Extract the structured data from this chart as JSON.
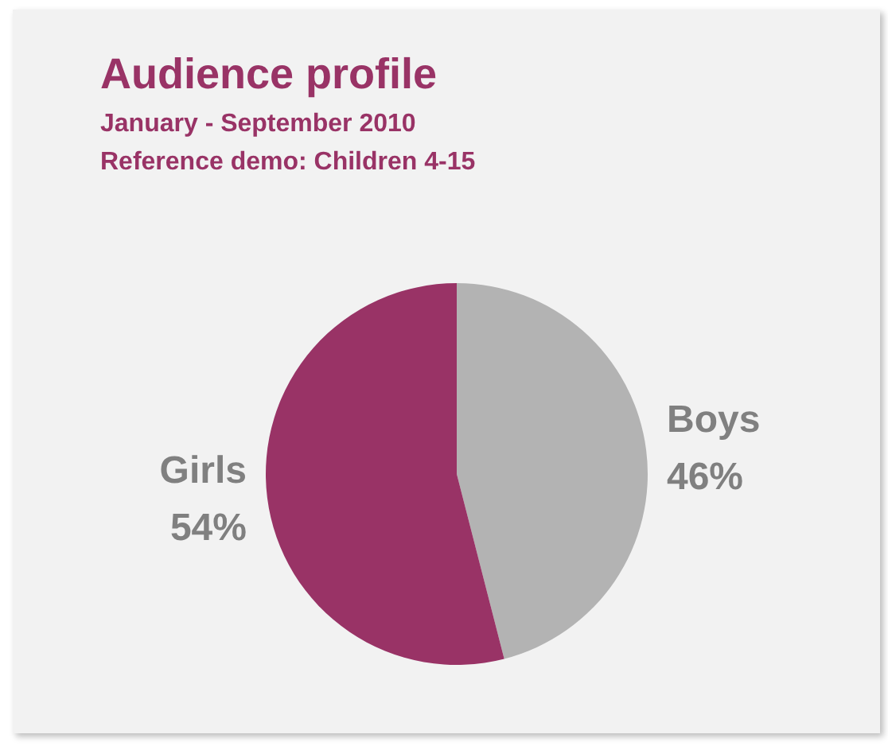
{
  "chart_data": {
    "type": "pie",
    "title": "Audience profile",
    "subtitle": "January - September 2010\nReference demo: Children 4-15",
    "categories": [
      "Boys",
      "Girls"
    ],
    "values": [
      46,
      54
    ],
    "colors": [
      "#b3b3b3",
      "#993366"
    ],
    "value_labels": [
      "46%",
      "54%"
    ],
    "legend": false
  }
}
